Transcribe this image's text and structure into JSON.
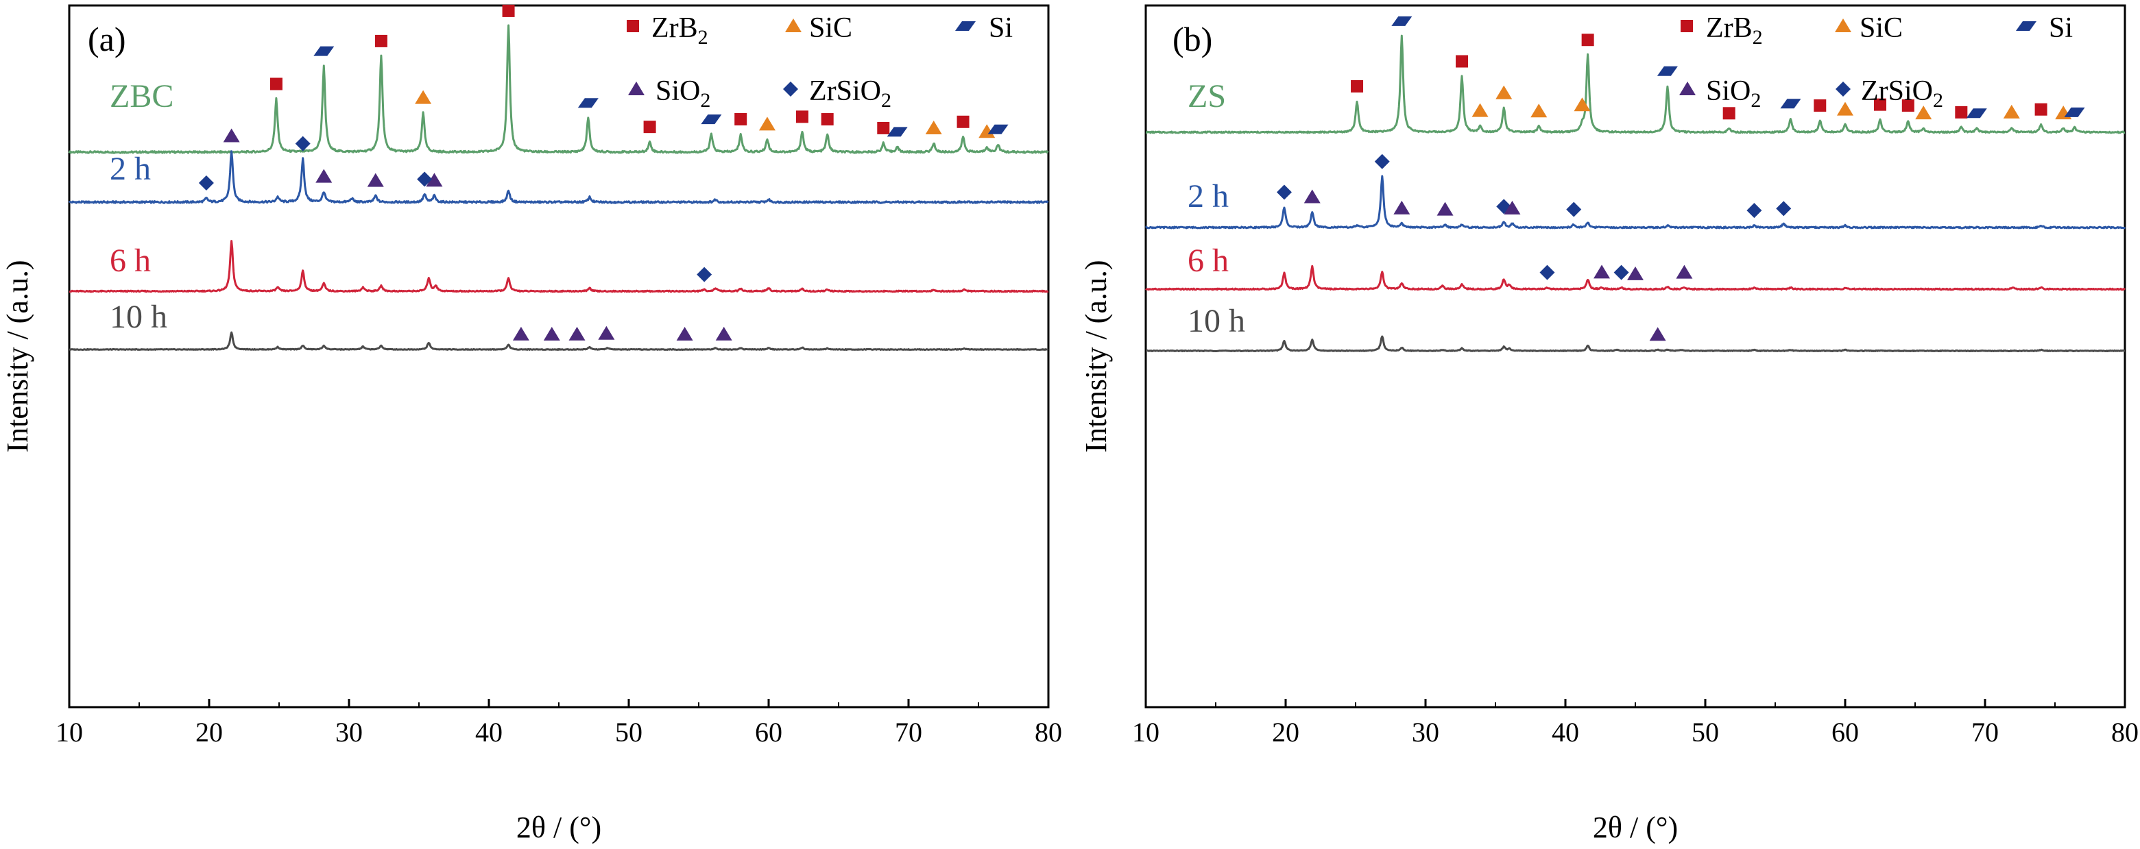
{
  "figure": {
    "panels": [
      {
        "id": "a",
        "tag": "(a)"
      },
      {
        "id": "b",
        "tag": "(b)"
      }
    ],
    "legend_items": [
      {
        "phase": "ZrB2",
        "label_main": "ZrB",
        "label_sub": "2",
        "marker": "square",
        "color": "#c0121c"
      },
      {
        "phase": "SiC",
        "label_main": "SiC",
        "label_sub": "",
        "marker": "triangle",
        "color": "#e6821f"
      },
      {
        "phase": "Si",
        "label_main": "Si",
        "label_sub": "",
        "marker": "parallelogram",
        "color": "#1b3a8c"
      },
      {
        "phase": "SiO2",
        "label_main": "SiO",
        "label_sub": "2",
        "marker": "triangle",
        "color": "#4b2a7a"
      },
      {
        "phase": "ZrSiO2",
        "label_main": "ZrSiO",
        "label_sub": "2",
        "marker": "diamond",
        "color": "#1b3a8c"
      }
    ]
  },
  "chart_data": [
    {
      "type": "line",
      "panel": "(a)",
      "xlabel": "2θ / (°)",
      "ylabel": "Intensity / (a.u.)",
      "xlim": [
        10,
        80
      ],
      "xticks": [
        10,
        20,
        30,
        40,
        50,
        60,
        70,
        80
      ],
      "y_ticks_shown": false,
      "legend_position": "top-right",
      "series": [
        {
          "name": "ZBC",
          "color": "#5c9f6b",
          "peaks": [
            [
              24.8,
              0.42
            ],
            [
              28.2,
              0.68
            ],
            [
              32.3,
              0.76
            ],
            [
              35.3,
              0.31
            ],
            [
              41.4,
              1.0
            ],
            [
              47.1,
              0.27
            ],
            [
              51.5,
              0.08
            ],
            [
              55.9,
              0.14
            ],
            [
              58.0,
              0.14
            ],
            [
              59.9,
              0.1
            ],
            [
              62.4,
              0.16
            ],
            [
              64.2,
              0.14
            ],
            [
              68.2,
              0.07
            ],
            [
              69.2,
              0.04
            ],
            [
              71.8,
              0.07
            ],
            [
              73.9,
              0.12
            ],
            [
              75.6,
              0.04
            ],
            [
              76.4,
              0.06
            ]
          ]
        },
        {
          "name": "2 h",
          "color": "#2b57a6",
          "peaks": [
            [
              19.8,
              0.03
            ],
            [
              21.6,
              0.4
            ],
            [
              24.9,
              0.04
            ],
            [
              26.7,
              0.34
            ],
            [
              28.2,
              0.08
            ],
            [
              30.2,
              0.03
            ],
            [
              31.9,
              0.05
            ],
            [
              35.4,
              0.06
            ],
            [
              36.1,
              0.05
            ],
            [
              41.4,
              0.09
            ],
            [
              47.2,
              0.04
            ],
            [
              56.2,
              0.02
            ],
            [
              60.0,
              0.02
            ]
          ]
        },
        {
          "name": "6 h",
          "color": "#d0243a",
          "peaks": [
            [
              21.6,
              0.64
            ],
            [
              24.9,
              0.05
            ],
            [
              26.7,
              0.26
            ],
            [
              28.2,
              0.1
            ],
            [
              31.0,
              0.05
            ],
            [
              32.3,
              0.07
            ],
            [
              35.7,
              0.17
            ],
            [
              36.2,
              0.07
            ],
            [
              41.4,
              0.17
            ],
            [
              47.2,
              0.04
            ],
            [
              55.4,
              0.02
            ],
            [
              56.2,
              0.04
            ],
            [
              58.0,
              0.03
            ],
            [
              60.0,
              0.04
            ],
            [
              62.4,
              0.03
            ],
            [
              64.2,
              0.02
            ],
            [
              71.8,
              0.02
            ],
            [
              74.0,
              0.02
            ]
          ]
        },
        {
          "name": "10 h",
          "color": "#4a4a4a",
          "peaks": [
            [
              21.6,
              0.35
            ],
            [
              24.9,
              0.05
            ],
            [
              26.7,
              0.08
            ],
            [
              28.2,
              0.08
            ],
            [
              31.0,
              0.06
            ],
            [
              32.3,
              0.08
            ],
            [
              35.7,
              0.14
            ],
            [
              41.4,
              0.1
            ],
            [
              47.2,
              0.05
            ],
            [
              48.5,
              0.03
            ],
            [
              56.2,
              0.03
            ],
            [
              58.0,
              0.03
            ],
            [
              60.0,
              0.03
            ],
            [
              62.4,
              0.04
            ],
            [
              64.2,
              0.02
            ],
            [
              74.0,
              0.02
            ]
          ]
        }
      ],
      "annotations": [
        {
          "phase": "ZrB2",
          "series": "ZBC",
          "x": [
            24.8,
            32.3,
            41.4,
            51.5,
            58.0,
            62.4,
            64.2,
            68.2,
            73.9
          ]
        },
        {
          "phase": "SiC",
          "series": "ZBC",
          "x": [
            35.3,
            59.9,
            71.8,
            75.6
          ]
        },
        {
          "phase": "Si",
          "series": "ZBC",
          "x": [
            28.2,
            47.1,
            55.9,
            69.2,
            76.4
          ]
        },
        {
          "phase": "SiO2",
          "series": "2 h",
          "x": [
            21.6,
            28.2,
            31.9,
            36.1
          ]
        },
        {
          "phase": "ZrSiO2",
          "series": "2 h",
          "x": [
            19.8,
            26.7,
            35.4
          ]
        },
        {
          "phase": "ZrSiO2",
          "series": "6 h",
          "x": [
            55.4
          ]
        },
        {
          "phase": "SiO2",
          "series": "10 h",
          "x": [
            42.3,
            44.5,
            46.3,
            48.4,
            54.0,
            56.8
          ]
        }
      ]
    },
    {
      "type": "line",
      "panel": "(b)",
      "xlabel": "2θ / (°)",
      "ylabel": "Intensity / (a.u.)",
      "xlim": [
        10,
        80
      ],
      "xticks": [
        10,
        20,
        30,
        40,
        50,
        60,
        70,
        80
      ],
      "y_ticks_shown": false,
      "legend_position": "top-right",
      "series": [
        {
          "name": "ZS",
          "color": "#5c9f6b",
          "peaks": [
            [
              25.1,
              0.32
            ],
            [
              28.3,
              1.0
            ],
            [
              32.6,
              0.58
            ],
            [
              33.9,
              0.06
            ],
            [
              35.6,
              0.25
            ],
            [
              38.1,
              0.06
            ],
            [
              41.2,
              0.06
            ],
            [
              41.6,
              0.8
            ],
            [
              47.3,
              0.48
            ],
            [
              51.7,
              0.04
            ],
            [
              56.1,
              0.14
            ],
            [
              58.2,
              0.12
            ],
            [
              60.0,
              0.08
            ],
            [
              62.5,
              0.13
            ],
            [
              64.5,
              0.12
            ],
            [
              65.6,
              0.04
            ],
            [
              68.3,
              0.05
            ],
            [
              69.4,
              0.04
            ],
            [
              71.9,
              0.05
            ],
            [
              74.0,
              0.08
            ],
            [
              75.6,
              0.04
            ],
            [
              76.4,
              0.05
            ]
          ]
        },
        {
          "name": "2 h",
          "color": "#2b57a6",
          "peaks": [
            [
              19.9,
              0.21
            ],
            [
              21.9,
              0.16
            ],
            [
              25.1,
              0.02
            ],
            [
              26.9,
              0.53
            ],
            [
              28.3,
              0.04
            ],
            [
              31.4,
              0.03
            ],
            [
              32.6,
              0.03
            ],
            [
              35.6,
              0.06
            ],
            [
              36.2,
              0.04
            ],
            [
              40.6,
              0.03
            ],
            [
              41.6,
              0.05
            ],
            [
              47.3,
              0.02
            ],
            [
              53.5,
              0.02
            ],
            [
              55.6,
              0.04
            ],
            [
              60.0,
              0.02
            ],
            [
              74.0,
              0.02
            ]
          ]
        },
        {
          "name": "6 h",
          "color": "#d0243a",
          "peaks": [
            [
              19.9,
              0.2
            ],
            [
              21.9,
              0.28
            ],
            [
              26.9,
              0.21
            ],
            [
              28.3,
              0.07
            ],
            [
              31.2,
              0.04
            ],
            [
              32.6,
              0.06
            ],
            [
              35.6,
              0.12
            ],
            [
              36.0,
              0.05
            ],
            [
              38.7,
              0.02
            ],
            [
              41.6,
              0.12
            ],
            [
              42.6,
              0.02
            ],
            [
              44.0,
              0.02
            ],
            [
              47.3,
              0.03
            ],
            [
              48.5,
              0.02
            ],
            [
              53.5,
              0.02
            ],
            [
              56.1,
              0.02
            ],
            [
              60.0,
              0.02
            ],
            [
              72.0,
              0.02
            ],
            [
              74.0,
              0.02
            ]
          ]
        },
        {
          "name": "10 h",
          "color": "#4a4a4a",
          "peaks": [
            [
              19.9,
              0.19
            ],
            [
              21.9,
              0.21
            ],
            [
              26.9,
              0.28
            ],
            [
              28.3,
              0.06
            ],
            [
              31.2,
              0.02
            ],
            [
              32.6,
              0.05
            ],
            [
              35.6,
              0.08
            ],
            [
              36.0,
              0.04
            ],
            [
              41.6,
              0.1
            ],
            [
              43.7,
              0.02
            ],
            [
              46.6,
              0.02
            ],
            [
              47.3,
              0.02
            ],
            [
              48.3,
              0.02
            ],
            [
              53.5,
              0.02
            ],
            [
              56.1,
              0.02
            ],
            [
              60.0,
              0.02
            ],
            [
              74.0,
              0.02
            ]
          ]
        }
      ],
      "annotations": [
        {
          "phase": "ZrB2",
          "series": "ZS",
          "x": [
            25.1,
            32.6,
            41.6,
            51.7,
            58.2,
            62.5,
            64.5,
            68.3,
            74.0
          ]
        },
        {
          "phase": "SiC",
          "series": "ZS",
          "x": [
            33.9,
            35.6,
            38.1,
            41.2,
            60.0,
            65.6,
            71.9,
            75.6
          ]
        },
        {
          "phase": "Si",
          "series": "ZS",
          "x": [
            28.3,
            47.3,
            56.1,
            69.4,
            76.4
          ]
        },
        {
          "phase": "ZrSiO2",
          "series": "2 h",
          "x": [
            19.9,
            26.9,
            35.6,
            40.6,
            53.5,
            55.6
          ]
        },
        {
          "phase": "SiO2",
          "series": "2 h",
          "x": [
            21.9,
            28.3,
            31.4,
            36.2
          ]
        },
        {
          "phase": "ZrSiO2",
          "series": "6 h",
          "x": [
            38.7,
            44.0
          ]
        },
        {
          "phase": "SiO2",
          "series": "6 h",
          "x": [
            42.6,
            45.0,
            48.5
          ]
        },
        {
          "phase": "SiO2",
          "series": "10 h",
          "x": [
            46.6
          ]
        }
      ]
    }
  ]
}
